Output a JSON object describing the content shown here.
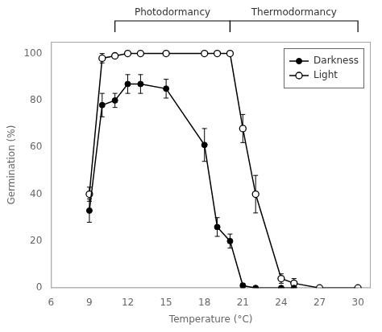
{
  "chart_data": {
    "type": "line",
    "xlabel": "Temperature (°C)",
    "ylabel": "Germination (%)",
    "xlim": [
      6,
      31
    ],
    "ylim": [
      0,
      105
    ],
    "xticks": [
      6,
      9,
      12,
      15,
      18,
      21,
      24,
      27,
      30
    ],
    "yticks": [
      0,
      20,
      40,
      60,
      80,
      100
    ],
    "grid": false,
    "legend": "upper right",
    "series": [
      {
        "name": "Darkness",
        "color": "#000000",
        "marker": "circle",
        "x": [
          9,
          10,
          11,
          12,
          13,
          15,
          18,
          19,
          20,
          21,
          22,
          24,
          25
        ],
        "values": [
          33,
          78,
          80,
          87,
          87,
          85,
          61,
          26,
          20,
          1,
          0,
          0,
          0
        ],
        "errors": [
          5,
          5,
          3,
          4,
          4,
          4,
          7,
          4,
          3,
          1,
          0,
          0,
          0
        ]
      },
      {
        "name": "Light",
        "color": "#000000",
        "marker": "open_circle",
        "x": [
          9,
          10,
          11,
          12,
          13,
          15,
          18,
          19,
          20,
          21,
          22,
          24,
          25,
          27,
          30
        ],
        "values": [
          40,
          98,
          99,
          100,
          100,
          100,
          100,
          100,
          100,
          68,
          40,
          4,
          2,
          0,
          0
        ],
        "errors": [
          3,
          2,
          1,
          0,
          0,
          0,
          0,
          0,
          0,
          6,
          8,
          2,
          2,
          0,
          0
        ]
      }
    ],
    "annotations": [
      {
        "text": "Photodormancy",
        "x": [
          11,
          20
        ]
      },
      {
        "text": "Thermodormancy",
        "x": [
          20,
          30
        ]
      }
    ]
  }
}
